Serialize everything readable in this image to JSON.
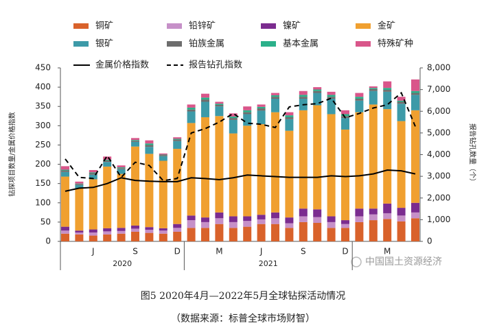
{
  "chart_data": {
    "type": "stacked_bar_line",
    "caption": "图5 2020年4月—2022年5月全球钻探活动情况",
    "source": "（数据来源：标普全球市场财智）",
    "ylabel": "钻探项目数量/金属价格指数",
    "y2label": "报告钻孔数量（个）",
    "categories": [
      null,
      null,
      "J",
      null,
      null,
      "S",
      null,
      null,
      "D",
      null,
      null,
      "M",
      null,
      null,
      "J",
      null,
      null,
      "S",
      null,
      null,
      "D",
      null,
      null,
      "M",
      null,
      null
    ],
    "x_groups": [
      {
        "label": "2020",
        "count": 9
      },
      {
        "label": "2021",
        "count": 12
      }
    ],
    "ylim": [
      0,
      450
    ],
    "yticks": [
      0,
      50,
      100,
      150,
      200,
      250,
      300,
      350,
      400,
      450
    ],
    "y2lim": [
      0,
      8000
    ],
    "y2ticks": [
      {
        "value": 0,
        "label": "0"
      },
      {
        "value": 1000,
        "label": "1,000"
      },
      {
        "value": 2000,
        "label": "2,000"
      },
      {
        "value": 3000,
        "label": "3,000"
      },
      {
        "value": 4000,
        "label": "4,000"
      },
      {
        "value": 5000,
        "label": "5,000"
      },
      {
        "value": 6000,
        "label": "6,000"
      },
      {
        "value": 7000,
        "label": "7,000"
      },
      {
        "value": 8000,
        "label": "8,000"
      }
    ],
    "series": [
      {
        "name": "铜矿",
        "color": "#d9622b",
        "values": [
          20,
          18,
          15,
          18,
          20,
          25,
          22,
          20,
          25,
          35,
          35,
          45,
          35,
          38,
          45,
          45,
          35,
          50,
          48,
          35,
          35,
          50,
          55,
          58,
          52,
          60
        ]
      },
      {
        "name": "铅锌矿",
        "color": "#c690c8",
        "values": [
          8,
          5,
          8,
          8,
          7,
          8,
          8,
          8,
          10,
          20,
          15,
          15,
          15,
          15,
          12,
          15,
          12,
          15,
          15,
          15,
          10,
          15,
          15,
          15,
          15,
          15
        ]
      },
      {
        "name": "镍矿",
        "color": "#7b2c8f",
        "values": [
          10,
          5,
          8,
          8,
          8,
          8,
          7,
          6,
          10,
          12,
          12,
          15,
          15,
          12,
          12,
          15,
          15,
          20,
          20,
          15,
          10,
          20,
          15,
          25,
          20,
          25
        ]
      },
      {
        "name": "金矿",
        "color": "#f0a030",
        "values": [
          130,
          110,
          130,
          160,
          140,
          205,
          190,
          175,
          195,
          240,
          260,
          250,
          215,
          235,
          235,
          260,
          225,
          255,
          270,
          265,
          235,
          250,
          270,
          245,
          225,
          240
        ]
      },
      {
        "name": "银矿",
        "color": "#3d9aa8",
        "values": [
          12,
          8,
          12,
          12,
          12,
          12,
          18,
          12,
          20,
          30,
          40,
          25,
          35,
          30,
          35,
          35,
          30,
          30,
          32,
          40,
          30,
          30,
          35,
          45,
          45,
          40
        ]
      },
      {
        "name": "铂族金属",
        "color": "#6d6d6d",
        "values": [
          4,
          3,
          4,
          4,
          3,
          3,
          5,
          3,
          4,
          5,
          6,
          4,
          5,
          5,
          6,
          5,
          5,
          5,
          5,
          5,
          5,
          5,
          5,
          5,
          5,
          5
        ]
      },
      {
        "name": "基本金属",
        "color": "#2bb08a",
        "values": [
          2,
          1,
          2,
          2,
          2,
          2,
          4,
          1,
          2,
          5,
          5,
          3,
          4,
          5,
          4,
          4,
          5,
          5,
          4,
          5,
          5,
          5,
          3,
          5,
          3,
          5
        ]
      },
      {
        "name": "特殊矿种",
        "color": "#d9568a",
        "values": [
          9,
          5,
          6,
          8,
          5,
          5,
          8,
          3,
          4,
          8,
          10,
          5,
          8,
          10,
          6,
          6,
          8,
          10,
          6,
          8,
          10,
          10,
          4,
          17,
          10,
          30
        ]
      }
    ],
    "lines": [
      {
        "name": "金属价格指数",
        "color": "#000000",
        "style": "solid",
        "axis": "y",
        "values": [
          130,
          138,
          140,
          150,
          165,
          158,
          156,
          155,
          155,
          165,
          163,
          160,
          165,
          172,
          170,
          168,
          166,
          166,
          166,
          170,
          168,
          170,
          175,
          185,
          183,
          175
        ]
      },
      {
        "name": "报告钻孔指数",
        "color": "#000000",
        "style": "dashed",
        "axis": "y2",
        "values": [
          3800,
          2950,
          2900,
          3950,
          2950,
          3650,
          3500,
          2800,
          2900,
          5000,
          5200,
          5500,
          5900,
          5450,
          5400,
          5250,
          6200,
          6300,
          6350,
          6600,
          5700,
          5900,
          6150,
          6300,
          6850,
          5300
        ]
      }
    ]
  },
  "watermark": "中国国土资源经济"
}
